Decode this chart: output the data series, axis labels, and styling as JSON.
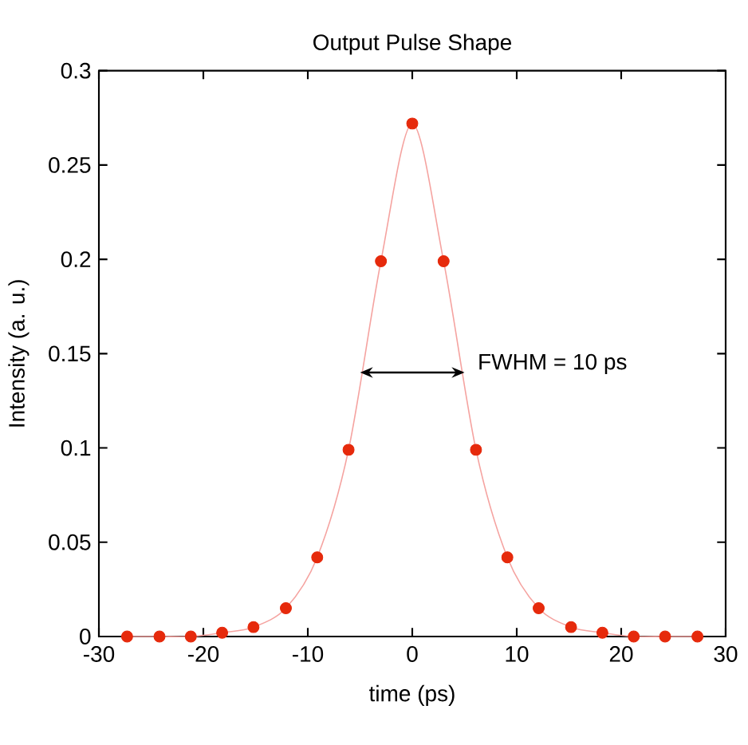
{
  "chart_data": {
    "type": "scatter",
    "title": "Output Pulse Shape",
    "xlabel": "time (ps)",
    "ylabel": "Intensity (a. u.)",
    "xlim": [
      -30,
      30
    ],
    "ylim": [
      0,
      0.3
    ],
    "xticks": [
      -30,
      -20,
      -10,
      0,
      10,
      20,
      30
    ],
    "yticks": [
      0,
      0.05,
      0.1,
      0.15,
      0.2,
      0.25,
      0.3
    ],
    "grid": false,
    "series": [
      {
        "type": "line",
        "marker": "none",
        "color": "#f5a3a0",
        "x": [
          -27.3,
          -24.2,
          -21.2,
          -18.2,
          -15.2,
          -12.1,
          -9.1,
          -6.1,
          -3.0,
          0,
          3.0,
          6.1,
          9.1,
          12.1,
          15.2,
          18.2,
          21.2,
          24.2,
          27.3
        ],
        "values": [
          0,
          0,
          0,
          0.002,
          0.005,
          0.015,
          0.042,
          0.099,
          0.199,
          0.272,
          0.199,
          0.099,
          0.042,
          0.015,
          0.005,
          0.002,
          0,
          0,
          0
        ]
      },
      {
        "marker": "circle",
        "color": "#e62a0c",
        "x": [
          -27.3,
          -24.2,
          -21.2,
          -18.2,
          -15.2,
          -12.1,
          -9.1,
          -6.1,
          -3.0,
          0,
          3.0,
          6.1,
          9.1,
          12.1,
          15.2,
          18.2,
          21.2,
          24.2,
          27.3
        ],
        "values": [
          0,
          0,
          0,
          0.002,
          0.005,
          0.015,
          0.042,
          0.099,
          0.199,
          0.272,
          0.199,
          0.099,
          0.042,
          0.015,
          0.005,
          0.002,
          0,
          0,
          0
        ]
      }
    ],
    "annotations": [
      {
        "text": "FWHM = 10 ps",
        "x": 5,
        "y": 0.14
      }
    ]
  }
}
